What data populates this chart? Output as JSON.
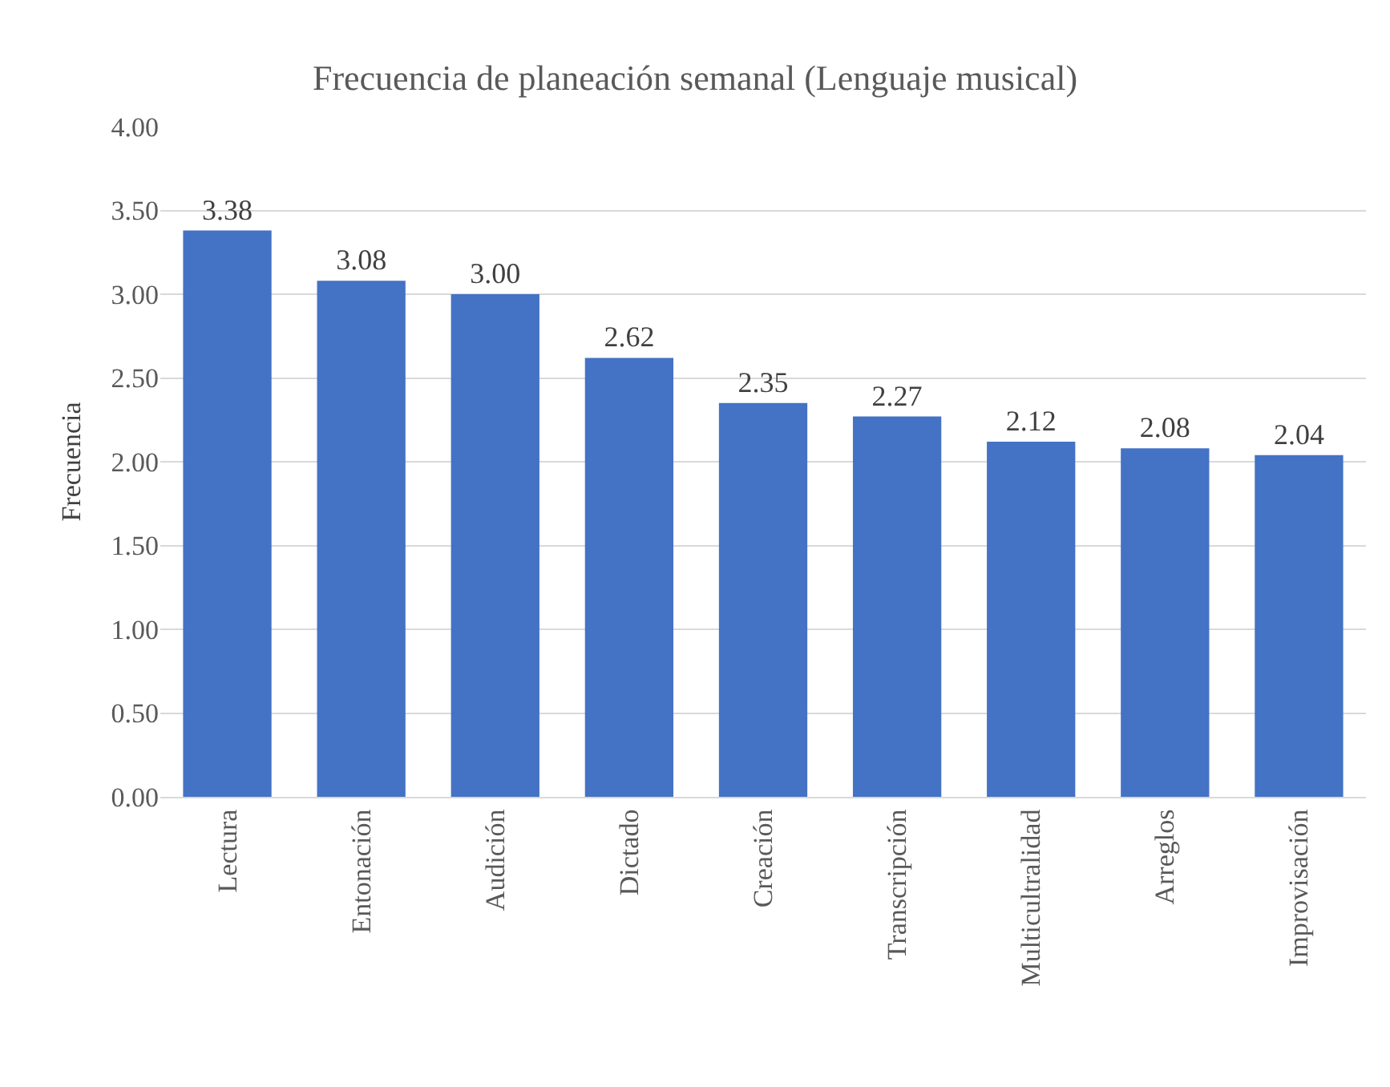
{
  "chart_data": {
    "type": "bar",
    "title": "Frecuencia de planeación semanal (Lenguaje musical)",
    "ylabel": "Frecuencia",
    "categories": [
      "Lectura",
      "Entonación",
      "Audición",
      "Dictado",
      "Creación",
      "Transcripción",
      "Multicultralidad",
      "Arreglos",
      "Improvisación"
    ],
    "values": [
      3.38,
      3.08,
      3.0,
      2.62,
      2.35,
      2.27,
      2.12,
      2.08,
      2.04
    ],
    "value_labels": [
      "3.38",
      "3.08",
      "3.00",
      "2.62",
      "2.35",
      "2.27",
      "2.12",
      "2.08",
      "2.04"
    ],
    "color": "#4472c4",
    "ylim": [
      0,
      4
    ],
    "yticks": [
      {
        "value": 0,
        "label": "0.00"
      },
      {
        "value": 0.5,
        "label": "0.50"
      },
      {
        "value": 1,
        "label": "1.00"
      },
      {
        "value": 1.5,
        "label": "1.50"
      },
      {
        "value": 2,
        "label": "2.00"
      },
      {
        "value": 2.5,
        "label": "2.50"
      },
      {
        "value": 3,
        "label": "3.00"
      },
      {
        "value": 3.5,
        "label": "3.50"
      },
      {
        "value": 4,
        "label": "4.00"
      }
    ],
    "grid": "y",
    "legend": false
  }
}
